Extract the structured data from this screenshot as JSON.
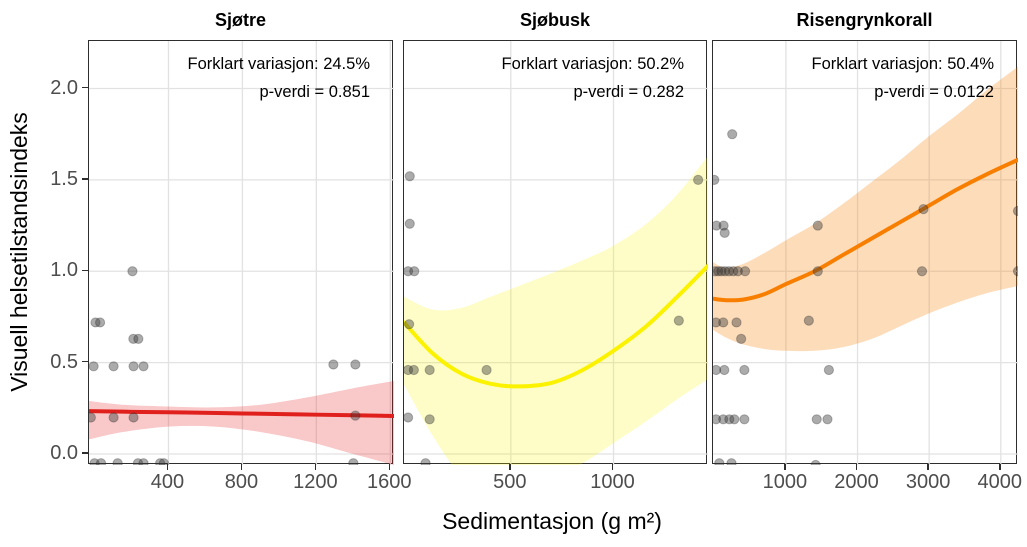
{
  "figure": {
    "x_axis_title": "Sedimentasjon (g m²)",
    "y_axis_title": "Visuell helsetilstandsindeks"
  },
  "style": {
    "background": "#FFFFFF",
    "grid_color": "#E2E2E2",
    "border_color": "#2E2E2E",
    "tick_color": "#2E2E2E",
    "tick_label_color": "#4D4D4D",
    "point_fill": "rgba(55,55,55,0.42)",
    "point_stroke": "rgba(35,35,35,0.30)"
  },
  "y_axis": {
    "ticks": [
      {
        "v": 0.0,
        "label": "0.0"
      },
      {
        "v": 0.5,
        "label": "0.5"
      },
      {
        "v": 1.0,
        "label": "1.0"
      },
      {
        "v": 1.5,
        "label": "1.5"
      },
      {
        "v": 2.0,
        "label": "2.0"
      }
    ]
  },
  "chart_data": [
    {
      "type": "scatter",
      "title": "Sjøtre",
      "annotation_line1": "Forklart variasjon: 24.5%",
      "annotation_line2": "p-verdi = 0.851",
      "line_color": "#E0201C",
      "band_fill": "rgba(228,26,28,0.24)",
      "xlim": [
        -30,
        1620
      ],
      "ylim": [
        -0.06,
        2.26
      ],
      "x_ticks": [
        {
          "v": 400,
          "label": "400"
        },
        {
          "v": 800,
          "label": "800"
        },
        {
          "v": 1200,
          "label": "1200"
        },
        {
          "v": 1600,
          "label": "1600"
        }
      ],
      "points": [
        [
          205,
          1.0
        ],
        [
          5,
          0.72
        ],
        [
          30,
          0.72
        ],
        [
          210,
          0.63
        ],
        [
          237,
          0.63
        ],
        [
          -5,
          0.48
        ],
        [
          103,
          0.48
        ],
        [
          211,
          0.48
        ],
        [
          265,
          0.48
        ],
        [
          1292,
          0.49
        ],
        [
          1411,
          0.49
        ],
        [
          -20,
          0.2
        ],
        [
          103,
          0.2
        ],
        [
          211,
          0.2
        ],
        [
          1411,
          0.21
        ],
        [
          0,
          -0.05
        ],
        [
          35,
          -0.05
        ],
        [
          125,
          -0.05
        ],
        [
          235,
          -0.05
        ],
        [
          265,
          -0.05
        ],
        [
          355,
          -0.05
        ],
        [
          375,
          -0.05
        ],
        [
          1400,
          -0.05
        ]
      ],
      "trend": {
        "x": [
          -30,
          200,
          500,
          800,
          1100,
          1400,
          1620
        ],
        "y": [
          0.235,
          0.231,
          0.227,
          0.222,
          0.217,
          0.212,
          0.208
        ]
      },
      "band": {
        "x": [
          -30,
          150,
          400,
          650,
          900,
          1150,
          1400,
          1620
        ],
        "upper": [
          0.29,
          0.27,
          0.26,
          0.255,
          0.27,
          0.31,
          0.36,
          0.4
        ],
        "lower": [
          0.08,
          0.12,
          0.15,
          0.15,
          0.12,
          0.07,
          0.0,
          -0.06
        ]
      }
    },
    {
      "type": "scatter",
      "title": "Sjøbusk",
      "annotation_line1": "Forklart variasjon: 50.2%",
      "annotation_line2": "p-verdi = 0.282",
      "line_color": "#FBF200",
      "band_fill": "rgba(250,245,0,0.22)",
      "xlim": [
        -20,
        1460
      ],
      "ylim": [
        -0.06,
        2.26
      ],
      "x_ticks": [
        {
          "v": 500,
          "label": "500"
        },
        {
          "v": 1000,
          "label": "1000"
        }
      ],
      "points": [
        [
          8,
          1.52
        ],
        [
          1412,
          1.5
        ],
        [
          8,
          1.26
        ],
        [
          0,
          1.0
        ],
        [
          30,
          1.0
        ],
        [
          5,
          0.71
        ],
        [
          0,
          0.46
        ],
        [
          28,
          0.46
        ],
        [
          105,
          0.46
        ],
        [
          382,
          0.46
        ],
        [
          1318,
          0.73
        ],
        [
          0,
          0.2
        ],
        [
          105,
          0.19
        ],
        [
          85,
          -0.05
        ]
      ],
      "trend": {
        "x": [
          -20,
          120,
          260,
          400,
          540,
          700,
          850,
          1000,
          1160,
          1310,
          1460
        ],
        "y": [
          0.72,
          0.55,
          0.44,
          0.385,
          0.37,
          0.39,
          0.46,
          0.565,
          0.7,
          0.86,
          1.03
        ]
      },
      "band": {
        "x": [
          -20,
          120,
          260,
          400,
          540,
          700,
          850,
          1000,
          1160,
          1310,
          1460
        ],
        "upper": [
          0.86,
          0.79,
          0.8,
          0.86,
          0.92,
          0.99,
          1.06,
          1.14,
          1.26,
          1.42,
          1.63
        ],
        "lower": [
          0.38,
          0.1,
          -0.12,
          -0.2,
          -0.18,
          -0.13,
          -0.05,
          0.06,
          0.18,
          0.3,
          0.41
        ]
      }
    },
    {
      "type": "scatter",
      "title": "Risengrynkorall",
      "annotation_line1": "Forklart variasjon: 50.4%",
      "annotation_line2": "p-verdi = 0.0122",
      "line_color": "#F87E00",
      "band_fill": "rgba(248,126,0,0.27)",
      "xlim": [
        -18,
        4240
      ],
      "ylim": [
        -0.06,
        2.26
      ],
      "x_ticks": [
        {
          "v": 1000,
          "label": "1000"
        },
        {
          "v": 2000,
          "label": "2000"
        },
        {
          "v": 3000,
          "label": "3000"
        },
        {
          "v": 4000,
          "label": "4000"
        }
      ],
      "points": [
        [
          250,
          1.75
        ],
        [
          0,
          1.5
        ],
        [
          30,
          1.25
        ],
        [
          130,
          1.25
        ],
        [
          145,
          1.21
        ],
        [
          1445,
          1.25
        ],
        [
          2920,
          1.34
        ],
        [
          4240,
          1.33
        ],
        [
          10,
          1.0
        ],
        [
          55,
          1.0
        ],
        [
          100,
          1.0
        ],
        [
          150,
          1.0
        ],
        [
          205,
          1.0
        ],
        [
          265,
          1.0
        ],
        [
          330,
          1.0
        ],
        [
          430,
          1.0
        ],
        [
          1445,
          1.0
        ],
        [
          2900,
          1.0
        ],
        [
          4240,
          1.0
        ],
        [
          25,
          0.72
        ],
        [
          125,
          0.72
        ],
        [
          310,
          0.72
        ],
        [
          1320,
          0.73
        ],
        [
          375,
          0.63
        ],
        [
          25,
          0.46
        ],
        [
          140,
          0.46
        ],
        [
          420,
          0.46
        ],
        [
          1600,
          0.46
        ],
        [
          25,
          0.19
        ],
        [
          125,
          0.19
        ],
        [
          210,
          0.19
        ],
        [
          280,
          0.19
        ],
        [
          420,
          0.19
        ],
        [
          1430,
          0.19
        ],
        [
          1580,
          0.19
        ],
        [
          70,
          -0.05
        ],
        [
          240,
          -0.05
        ],
        [
          1415,
          -0.06
        ]
      ],
      "trend": {
        "x": [
          -18,
          150,
          400,
          700,
          1000,
          1400,
          1800,
          2200,
          2600,
          3000,
          3400,
          3800,
          4240
        ],
        "y": [
          0.85,
          0.842,
          0.845,
          0.875,
          0.93,
          1.0,
          1.09,
          1.18,
          1.27,
          1.36,
          1.45,
          1.53,
          1.61
        ]
      },
      "band": {
        "x": [
          -18,
          150,
          400,
          700,
          1000,
          1400,
          1800,
          2200,
          2600,
          3000,
          3400,
          3800,
          4240
        ],
        "upper": [
          1.05,
          1.02,
          1.04,
          1.1,
          1.17,
          1.26,
          1.37,
          1.49,
          1.61,
          1.74,
          1.86,
          1.99,
          2.12
        ],
        "lower": [
          0.68,
          0.64,
          0.6,
          0.575,
          0.565,
          0.565,
          0.585,
          0.63,
          0.7,
          0.77,
          0.83,
          0.88,
          0.92
        ]
      }
    }
  ]
}
